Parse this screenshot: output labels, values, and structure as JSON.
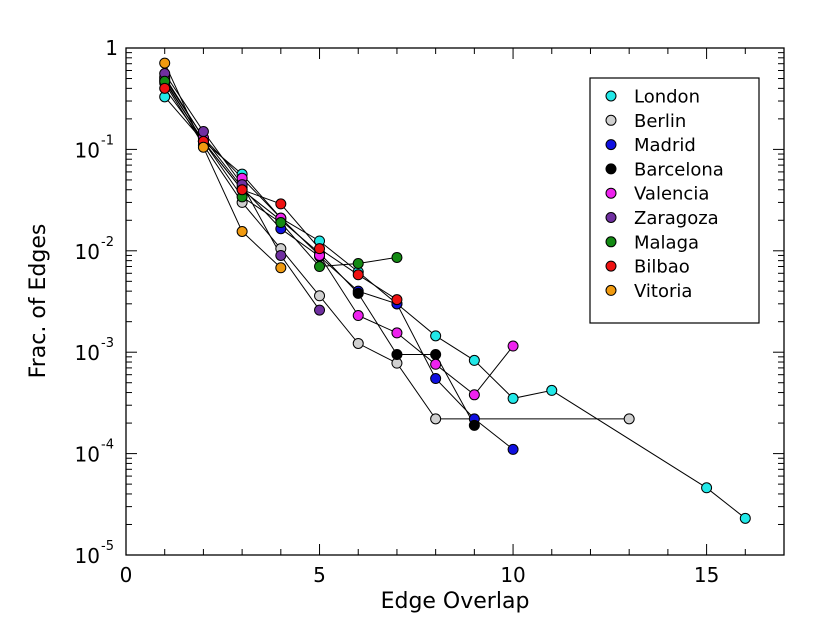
{
  "chart_data": {
    "type": "scatter",
    "xlabel": "Edge Overlap",
    "ylabel": "Frac. of Edges",
    "xlim": [
      0,
      17
    ],
    "ylim": [
      1e-05,
      1
    ],
    "yscale": "log",
    "grid": false,
    "legend_position": "top-right",
    "x_ticks": [
      {
        "value": 0,
        "label": "0"
      },
      {
        "value": 5,
        "label": "5"
      },
      {
        "value": 10,
        "label": "10"
      },
      {
        "value": 15,
        "label": "15"
      }
    ],
    "y_ticks": [
      {
        "value": 1,
        "base": "1",
        "exp": ""
      },
      {
        "value": 0.1,
        "base": "10",
        "exp": "-1"
      },
      {
        "value": 0.01,
        "base": "10",
        "exp": "-2"
      },
      {
        "value": 0.001,
        "base": "10",
        "exp": "-3"
      },
      {
        "value": 0.0001,
        "base": "10",
        "exp": "-4"
      },
      {
        "value": 1e-05,
        "base": "10",
        "exp": "-5"
      }
    ],
    "series": [
      {
        "name": "London",
        "color": "#22e8e8",
        "x": [
          1,
          2,
          3,
          4,
          5,
          6,
          7,
          8,
          9,
          10,
          11,
          15,
          16
        ],
        "y": [
          0.33,
          0.12,
          0.057,
          0.021,
          0.0125,
          0.0062,
          0.003,
          0.00145,
          0.00083,
          0.00035,
          0.00042,
          4.6e-05,
          2.3e-05
        ]
      },
      {
        "name": "Berlin",
        "color": "#d0d0d0",
        "x": [
          1,
          2,
          3,
          4,
          5,
          6,
          7,
          8,
          13
        ],
        "y": [
          0.45,
          0.11,
          0.03,
          0.0105,
          0.0036,
          0.00122,
          0.00078,
          0.00022,
          0.00022
        ]
      },
      {
        "name": "Madrid",
        "color": "#1010e0",
        "x": [
          1,
          2,
          3,
          4,
          5,
          6,
          7,
          8,
          9,
          10
        ],
        "y": [
          0.5,
          0.13,
          0.042,
          0.0165,
          0.0088,
          0.004,
          0.003,
          0.00055,
          0.00022,
          0.00011
        ]
      },
      {
        "name": "Barcelona",
        "color": "#000000",
        "x": [
          1,
          2,
          3,
          4,
          5,
          6,
          7,
          8,
          9
        ],
        "y": [
          0.48,
          0.12,
          0.04,
          0.02,
          0.0095,
          0.0038,
          0.00095,
          0.00095,
          0.00019
        ]
      },
      {
        "name": "Valencia",
        "color": "#ee22ee",
        "x": [
          1,
          2,
          3,
          4,
          5,
          6,
          7,
          8,
          9,
          10
        ],
        "y": [
          0.52,
          0.13,
          0.052,
          0.021,
          0.009,
          0.0023,
          0.00155,
          0.00076,
          0.00038,
          0.00115
        ]
      },
      {
        "name": "Zaragoza",
        "color": "#7030a0",
        "x": [
          1,
          2,
          3,
          4,
          5
        ],
        "y": [
          0.56,
          0.15,
          0.045,
          0.009,
          0.0026
        ]
      },
      {
        "name": "Malaga",
        "color": "#138a13",
        "x": [
          1,
          2,
          3,
          4,
          5,
          6,
          7
        ],
        "y": [
          0.47,
          0.12,
          0.034,
          0.019,
          0.007,
          0.0075,
          0.0086
        ]
      },
      {
        "name": "Bilbao",
        "color": "#ee1111",
        "x": [
          1,
          2,
          3,
          4,
          5,
          6,
          7
        ],
        "y": [
          0.4,
          0.12,
          0.04,
          0.029,
          0.0105,
          0.0058,
          0.0033
        ]
      },
      {
        "name": "Vitoria",
        "color": "#f09a10",
        "x": [
          1,
          2,
          3,
          4
        ],
        "y": [
          0.71,
          0.105,
          0.0155,
          0.0068
        ]
      }
    ]
  }
}
